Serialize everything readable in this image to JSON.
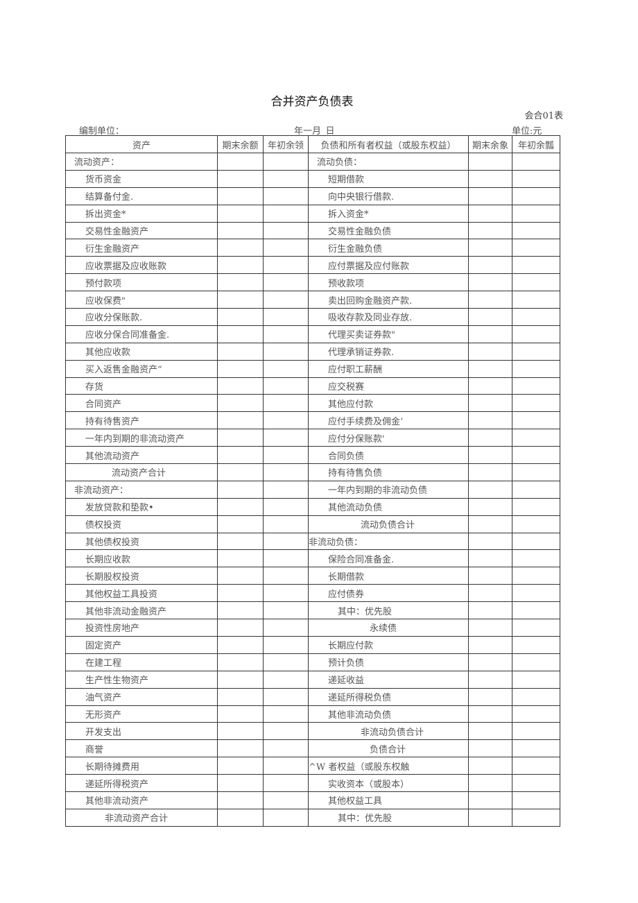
{
  "title": "合并资产负债表",
  "form_code": "会合01表",
  "compiler_label": "编制单位：",
  "date_label": "年一月_日",
  "unit_label": "单位:元",
  "headers": [
    "资产",
    "期末余额",
    "年初余领",
    "负债和所有者权益（或股东权益）",
    "期末余象",
    "年初余瓢"
  ],
  "rows": [
    {
      "left": "流动资产：",
      "lt": "h",
      "right": "流动负债：",
      "rt": "h"
    },
    {
      "left": "货币资金",
      "lt": "n",
      "right": "短期借款",
      "rt": "n"
    },
    {
      "left": "结算备付金.",
      "lt": "n",
      "right": "向中央银行借款.",
      "rt": "n"
    },
    {
      "left": "拆出资金*",
      "lt": "n",
      "right": "拆入资金*",
      "rt": "n"
    },
    {
      "left": "交易性金融资产",
      "lt": "n",
      "right": "交易性金融负债",
      "rt": "n"
    },
    {
      "left": "衍生金融资产",
      "lt": "n",
      "right": "衍生金融负债",
      "rt": "n"
    },
    {
      "left": "应收票据及应收账款",
      "lt": "n",
      "right": "应付票据及应付账款",
      "rt": "n"
    },
    {
      "left": "预付款项",
      "lt": "n",
      "right": "预收款项",
      "rt": "n"
    },
    {
      "left": "应收保费\"",
      "lt": "n",
      "right": "卖出回购金融资产款.",
      "rt": "n"
    },
    {
      "left": "应收分保账款.",
      "lt": "n",
      "right": "吸收存款及同业存放.",
      "rt": "n"
    },
    {
      "left": "应收分保合同准备金.",
      "lt": "n",
      "right": "代理买卖证券款\"",
      "rt": "n"
    },
    {
      "left": "其他应收款",
      "lt": "n",
      "right": "代理承销证券款.",
      "rt": "n"
    },
    {
      "left": "买入返售金融资产“",
      "lt": "n",
      "right": "应付职工薪酬",
      "rt": "n"
    },
    {
      "left": "存货",
      "lt": "n",
      "right": "应交税赛",
      "rt": "n"
    },
    {
      "left": "合同资产",
      "lt": "n",
      "right": "其他应付款",
      "rt": "n"
    },
    {
      "left": "持有待售资产",
      "lt": "n",
      "right": "应付手续费及佣金‘",
      "rt": "n"
    },
    {
      "left": "一年内到期的非流动资产",
      "lt": "n",
      "right": "应付分保账款'",
      "rt": "n"
    },
    {
      "left": "其他流动资产",
      "lt": "n",
      "right": "合同负债",
      "rt": "n"
    },
    {
      "left": "流动资产合计",
      "lt": "t",
      "right": "持有待售负债",
      "rt": "n"
    },
    {
      "left": "非流动资产：",
      "lt": "h",
      "right": "一年内到期的非流动负债",
      "rt": "n"
    },
    {
      "left": "发放贷款和垫款•",
      "lt": "n",
      "right": "其他流动负债",
      "rt": "n"
    },
    {
      "left": "债权投资",
      "lt": "n",
      "right": "流动负债合计",
      "rt": "r2"
    },
    {
      "left": "其他债权投资",
      "lt": "n",
      "right": "非流动负债：",
      "rt": "h0"
    },
    {
      "left": "长期应收款",
      "lt": "n",
      "right": "保险合同准备金.",
      "rt": "n"
    },
    {
      "left": "长期股权投资",
      "lt": "n",
      "right": "长期借款",
      "rt": "n"
    },
    {
      "left": "其他权益工具投资",
      "lt": "n",
      "right": "应付债券",
      "rt": "n"
    },
    {
      "left": "其他非流动金融资产",
      "lt": "n",
      "right": "其中：优先股",
      "rt": "s"
    },
    {
      "left": "投资性房地产",
      "lt": "n",
      "right": "永续债",
      "rt": "r3"
    },
    {
      "left": "固定资产",
      "lt": "n",
      "right": "长期应付款",
      "rt": "n"
    },
    {
      "left": "在建工程",
      "lt": "n",
      "right": "预计负债",
      "rt": "n"
    },
    {
      "left": "生产性生物资产",
      "lt": "n",
      "right": "递延收益",
      "rt": "n"
    },
    {
      "left": "油气资产",
      "lt": "n",
      "right": "递延所得税负债",
      "rt": "n"
    },
    {
      "left": "无形资产",
      "lt": "n",
      "right": "其他非流动负债",
      "rt": "n"
    },
    {
      "left": "开发支出",
      "lt": "n",
      "right": "非流动负债合计",
      "rt": "r2"
    },
    {
      "left": "商誉",
      "lt": "n",
      "right": "负债合计",
      "rt": "r3"
    },
    {
      "left": "长期待摊费用",
      "lt": "n",
      "right": "^W 者权益（或股东权触",
      "rt": "h0"
    },
    {
      "left": "递延所得税资产",
      "lt": "n",
      "right": "实收资本（或股本）",
      "rt": "n"
    },
    {
      "left": "其他非流动资产",
      "lt": "n",
      "right": "其他权益工具",
      "rt": "n"
    },
    {
      "left": "非流动资产合计",
      "lt": "t2",
      "right": "其中：优先股",
      "rt": "s"
    }
  ]
}
